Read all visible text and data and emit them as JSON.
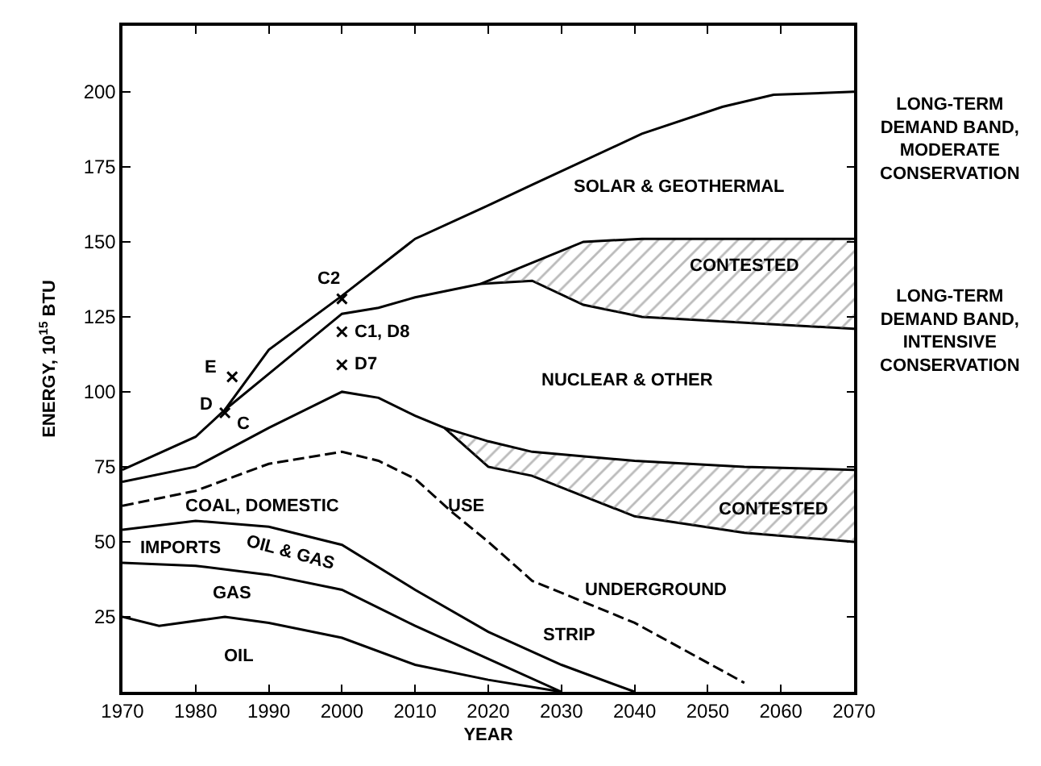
{
  "chart_data": {
    "type": "line",
    "xlabel": "YEAR",
    "ylabel": "ENERGY, 10$^{15}$ BTU",
    "xlim": [
      1970,
      2070
    ],
    "xticks": [
      1970,
      1980,
      1990,
      2000,
      2010,
      2020,
      2030,
      2040,
      2050,
      2060,
      2070
    ],
    "ylim": [
      0,
      222
    ],
    "yticks": [
      25,
      50,
      75,
      100,
      125,
      150,
      175,
      200
    ],
    "marker": "none",
    "line_style": "solid",
    "series": [
      {
        "color": "#000000",
        "x": [
          1970,
          1975,
          1984,
          1990,
          2000,
          2010,
          2020,
          2030
        ],
        "values": [
          25,
          22,
          25,
          23,
          18,
          9,
          4,
          0
        ]
      },
      {
        "color": "#000000",
        "x": [
          1970,
          1980,
          1990,
          2000,
          2010,
          2020,
          2030
        ],
        "values": [
          43,
          42,
          39,
          34,
          22,
          11,
          0
        ]
      },
      {
        "color": "#000000",
        "x": [
          1970,
          1980,
          1990,
          2000,
          2010,
          2020,
          2030,
          2040
        ],
        "values": [
          54,
          57,
          55,
          49,
          34,
          20,
          9,
          0
        ]
      },
      {
        "color": "#000000",
        "line_style": "dashed",
        "x": [
          1970,
          1980,
          1990,
          2000,
          2005,
          2010,
          2015,
          2020,
          2026,
          2040,
          2055
        ],
        "values": [
          62,
          67,
          76,
          80,
          77,
          71,
          60,
          50,
          37,
          23,
          3
        ]
      },
      {
        "color": "#000000",
        "x": [
          1970,
          1980,
          1990,
          2000,
          2005,
          2010,
          2014,
          2020,
          2026,
          2040,
          2055,
          2070
        ],
        "values": [
          70,
          75,
          88,
          100,
          98,
          92,
          88,
          75,
          72,
          58.5,
          53,
          50
        ]
      },
      {
        "color": "#000000",
        "x": [
          2014,
          2020,
          2026,
          2040,
          2055,
          2070
        ],
        "values": [
          88,
          83.5,
          80,
          77,
          75,
          74
        ],
        "upper": [
          88,
          83.5,
          80,
          77,
          75,
          74
        ],
        "lower": [
          88,
          75,
          72,
          58.5,
          53,
          50
        ]
      },
      {
        "color": "#000000",
        "x": [
          1970,
          1980,
          1984,
          1990,
          2000,
          2010,
          2019,
          2026,
          2041,
          2052,
          2059,
          2070
        ],
        "values": [
          74,
          85,
          94,
          114,
          132,
          151,
          161,
          169,
          186,
          195,
          199,
          200
        ]
      },
      {
        "color": "#000000",
        "x": [
          1984,
          1990,
          2000,
          2005,
          2010,
          2019,
          2026,
          2033,
          2041,
          2070
        ],
        "values": [
          94,
          106,
          126,
          128,
          131.5,
          136,
          137,
          129,
          125,
          121
        ]
      },
      {
        "color": "#000000",
        "x": [
          2019,
          2026,
          2033,
          2041,
          2070
        ],
        "values": [
          136,
          143,
          150,
          151,
          151
        ],
        "upper": [
          136,
          143,
          150,
          151,
          151
        ],
        "lower": [
          136,
          137,
          129,
          125,
          121
        ]
      },
      {
        "type": "scatter",
        "marker": "cross",
        "color": "#000000",
        "x": [
          1984,
          1985,
          2000,
          2000,
          2000
        ],
        "values": [
          93,
          105,
          131,
          120,
          109
        ]
      }
    ],
    "annotations": [
      "OIL",
      "GAS",
      "IMPORTS",
      "OIL & GAS",
      "COAL, DOMESTIC",
      "USE",
      "STRIP",
      "UNDERGROUND",
      "CONTESTED",
      "NUCLEAR & OTHER",
      "CONTESTED",
      "SOLAR & GEOTHERMAL",
      {
        "text": "C2",
        "x": 2000,
        "y": 131
      },
      {
        "text": "C1, D8",
        "x": 2000,
        "y": 120
      },
      {
        "text": "D7",
        "x": 2000,
        "y": 109
      },
      {
        "text": "E",
        "x": 1985,
        "y": 105
      },
      {
        "text": "D",
        "x": 1984,
        "y": 93
      },
      {
        "text": "C",
        "x": 1984,
        "y": 93
      },
      "LONG-TERM\nDEMAND BAND,\nMODERATE\nCONSERVATION",
      "LONG-TERM\nDEMAND BAND,\nINTENSIVE\nCONSERVATION"
    ]
  }
}
